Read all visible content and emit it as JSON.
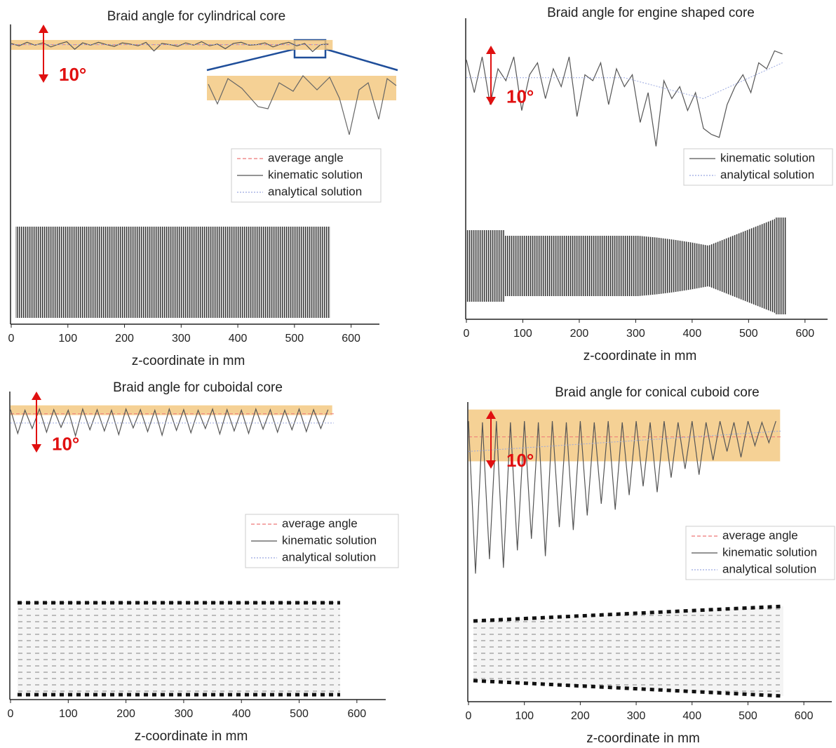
{
  "chart_data": [
    {
      "type": "line",
      "title": "Braid angle for cylindrical core",
      "xlabel": "z-coordinate in mm",
      "xlim": [
        0,
        650
      ],
      "xticks": [
        0,
        100,
        200,
        300,
        400,
        500,
        600
      ],
      "ylim": [
        -3,
        48
      ],
      "band": [
        44.1,
        45.8
      ],
      "band_color": "#f3c57a",
      "scale_bar": {
        "value": 10,
        "label": "10°"
      },
      "series": [
        {
          "name": "average angle",
          "color": "#e77",
          "line_style": "dashed",
          "x": [
            0,
            560
          ],
          "values": [
            45,
            45
          ]
        },
        {
          "name": "kinematic solution",
          "color": "#555",
          "line_style": "solid",
          "x": [
            0,
            14,
            28,
            42,
            56,
            70,
            84,
            98,
            112,
            126,
            140,
            154,
            168,
            182,
            196,
            210,
            224,
            238,
            252,
            266,
            280,
            294,
            308,
            322,
            336,
            350,
            364,
            378,
            392,
            406,
            420,
            434,
            448,
            462,
            476,
            490,
            504,
            518,
            532,
            546,
            560
          ],
          "values": [
            45.2,
            44.8,
            45.4,
            44.9,
            45.3,
            44.6,
            45.1,
            45.5,
            44.2,
            45.3,
            44.9,
            45.4,
            45.0,
            44.7,
            45.3,
            45.1,
            44.8,
            45.4,
            43.9,
            45.2,
            45.0,
            44.7,
            45.3,
            44.9,
            45.5,
            44.8,
            45.1,
            44.3,
            45.2,
            45.4,
            44.9,
            45.0,
            45.3,
            44.6,
            45.1,
            45.4,
            44.8,
            45.2,
            43.8,
            45.0,
            45.1
          ]
        },
        {
          "name": "analytical solution",
          "color": "#9aa8e0",
          "line_style": "dotted",
          "x": [
            0,
            560
          ],
          "values": [
            45,
            45
          ]
        }
      ]
    },
    {
      "type": "line",
      "title": "Braid angle for engine shaped core",
      "xlabel": "z-coordinate in mm",
      "xlim": [
        0,
        640
      ],
      "xticks": [
        0,
        100,
        200,
        300,
        400,
        500,
        600
      ],
      "ylim": [
        0,
        50
      ],
      "scale_bar": {
        "value": 10,
        "label": "10°"
      },
      "series": [
        {
          "name": "kinematic solution",
          "color": "#555",
          "line_style": "solid",
          "x": [
            0,
            14,
            28,
            42,
            56,
            70,
            84,
            98,
            112,
            126,
            140,
            154,
            168,
            182,
            196,
            210,
            224,
            238,
            252,
            266,
            280,
            294,
            308,
            322,
            336,
            350,
            364,
            378,
            392,
            406,
            420,
            434,
            448,
            462,
            476,
            490,
            504,
            518,
            532,
            546,
            560
          ],
          "values": [
            43.5,
            38,
            44,
            36,
            42,
            40,
            44,
            35,
            41,
            43,
            37,
            42,
            39,
            44,
            34,
            41,
            40,
            43,
            36,
            42,
            39,
            41,
            33,
            38,
            29,
            40,
            37,
            39,
            35,
            38,
            32,
            31,
            30.5,
            36,
            39,
            41,
            38,
            43,
            42,
            45,
            44.5
          ]
        },
        {
          "name": "analytical solution",
          "color": "#9aa8e0",
          "line_style": "dotted",
          "x": [
            0,
            280,
            420,
            560
          ],
          "values": [
            40.5,
            40.5,
            37,
            43
          ]
        }
      ]
    },
    {
      "type": "line",
      "title": "Braid angle for cuboidal core",
      "xlabel": "z-coordinate in mm",
      "xlim": [
        0,
        650
      ],
      "xticks": [
        0,
        100,
        200,
        300,
        400,
        500,
        600
      ],
      "ylim": [
        0,
        50
      ],
      "band": [
        46.6,
        48.2
      ],
      "band_color": "#f3c57a",
      "scale_bar": {
        "value": 10,
        "label": "10°"
      },
      "series": [
        {
          "name": "average angle",
          "color": "#e77",
          "line_style": "dashed",
          "x": [
            0,
            560
          ],
          "values": [
            46.8,
            46.8
          ]
        },
        {
          "name": "kinematic solution",
          "color": "#555",
          "line_style": "solid",
          "x": [
            0,
            12.5,
            25,
            37.5,
            50,
            62.5,
            75,
            87.5,
            100,
            112.5,
            125,
            137.5,
            150,
            162.5,
            175,
            187.5,
            200,
            212.5,
            225,
            237.5,
            250,
            262.5,
            275,
            287.5,
            300,
            312.5,
            325,
            337.5,
            350,
            362.5,
            375,
            387.5,
            400,
            412.5,
            425,
            437.5,
            450,
            462.5,
            475,
            487.5,
            500,
            512.5,
            525,
            537.5,
            550
          ],
          "values": [
            47.5,
            43.6,
            47.4,
            44.4,
            47.6,
            43.8,
            47.5,
            44.6,
            47.4,
            43.2,
            47.6,
            44.2,
            47.5,
            44.0,
            47.4,
            43.4,
            47.6,
            44.5,
            47.5,
            43.9,
            47.4,
            43.3,
            47.6,
            44.1,
            47.5,
            43.7,
            47.4,
            44.4,
            47.6,
            43.5,
            47.5,
            44.0,
            47.4,
            43.6,
            47.6,
            44.3,
            47.5,
            43.8,
            47.4,
            44.2,
            47.6,
            43.9,
            47.5,
            44.4,
            47.5
          ]
        },
        {
          "name": "analytical solution",
          "color": "#9aa8e0",
          "line_style": "dotted",
          "x": [
            0,
            560
          ],
          "values": [
            45.3,
            45.3
          ]
        }
      ]
    },
    {
      "type": "line",
      "title": "Braid angle for conical cuboid core",
      "xlabel": "z-coordinate in mm",
      "xlim": [
        0,
        650
      ],
      "xticks": [
        0,
        100,
        200,
        300,
        400,
        500,
        600
      ],
      "ylim": [
        0,
        51
      ],
      "band": [
        41.3,
        50.2
      ],
      "band_color": "#f3c57a",
      "scale_bar": {
        "value": 10,
        "label": "10°"
      },
      "series": [
        {
          "name": "average angle",
          "color": "#e77",
          "line_style": "dashed",
          "x": [
            0,
            560
          ],
          "values": [
            45.5,
            45.5
          ]
        },
        {
          "name": "kinematic solution",
          "color": "#555",
          "line_style": "solid",
          "x": [
            0,
            12.5,
            25,
            37.5,
            50,
            62.5,
            75,
            87.5,
            100,
            112.5,
            125,
            137.5,
            150,
            162.5,
            175,
            187.5,
            200,
            212.5,
            225,
            237.5,
            250,
            262.5,
            275,
            287.5,
            300,
            312.5,
            325,
            337.5,
            350,
            362.5,
            375,
            387.5,
            400,
            412.5,
            425,
            437.5,
            450,
            462.5,
            475,
            487.5,
            500,
            512.5,
            525,
            537.5,
            550
          ],
          "values": [
            48.2,
            22,
            48.0,
            24.5,
            48.2,
            23,
            48.0,
            26,
            48.2,
            28,
            48.0,
            25,
            48.2,
            30,
            48.0,
            29.5,
            48.2,
            32,
            48.0,
            34,
            48.2,
            33,
            48.0,
            35.5,
            48.2,
            37,
            48.0,
            36,
            48.2,
            38.5,
            48.0,
            40,
            48.2,
            39,
            48.0,
            41.5,
            48.2,
            43,
            48.0,
            42,
            48.2,
            44,
            48.0,
            44.5,
            48.2
          ]
        },
        {
          "name": "analytical solution",
          "color": "#9aa8e0",
          "line_style": "dotted",
          "x": [
            0,
            560
          ],
          "values": [
            43,
            46.5
          ]
        }
      ]
    }
  ]
}
